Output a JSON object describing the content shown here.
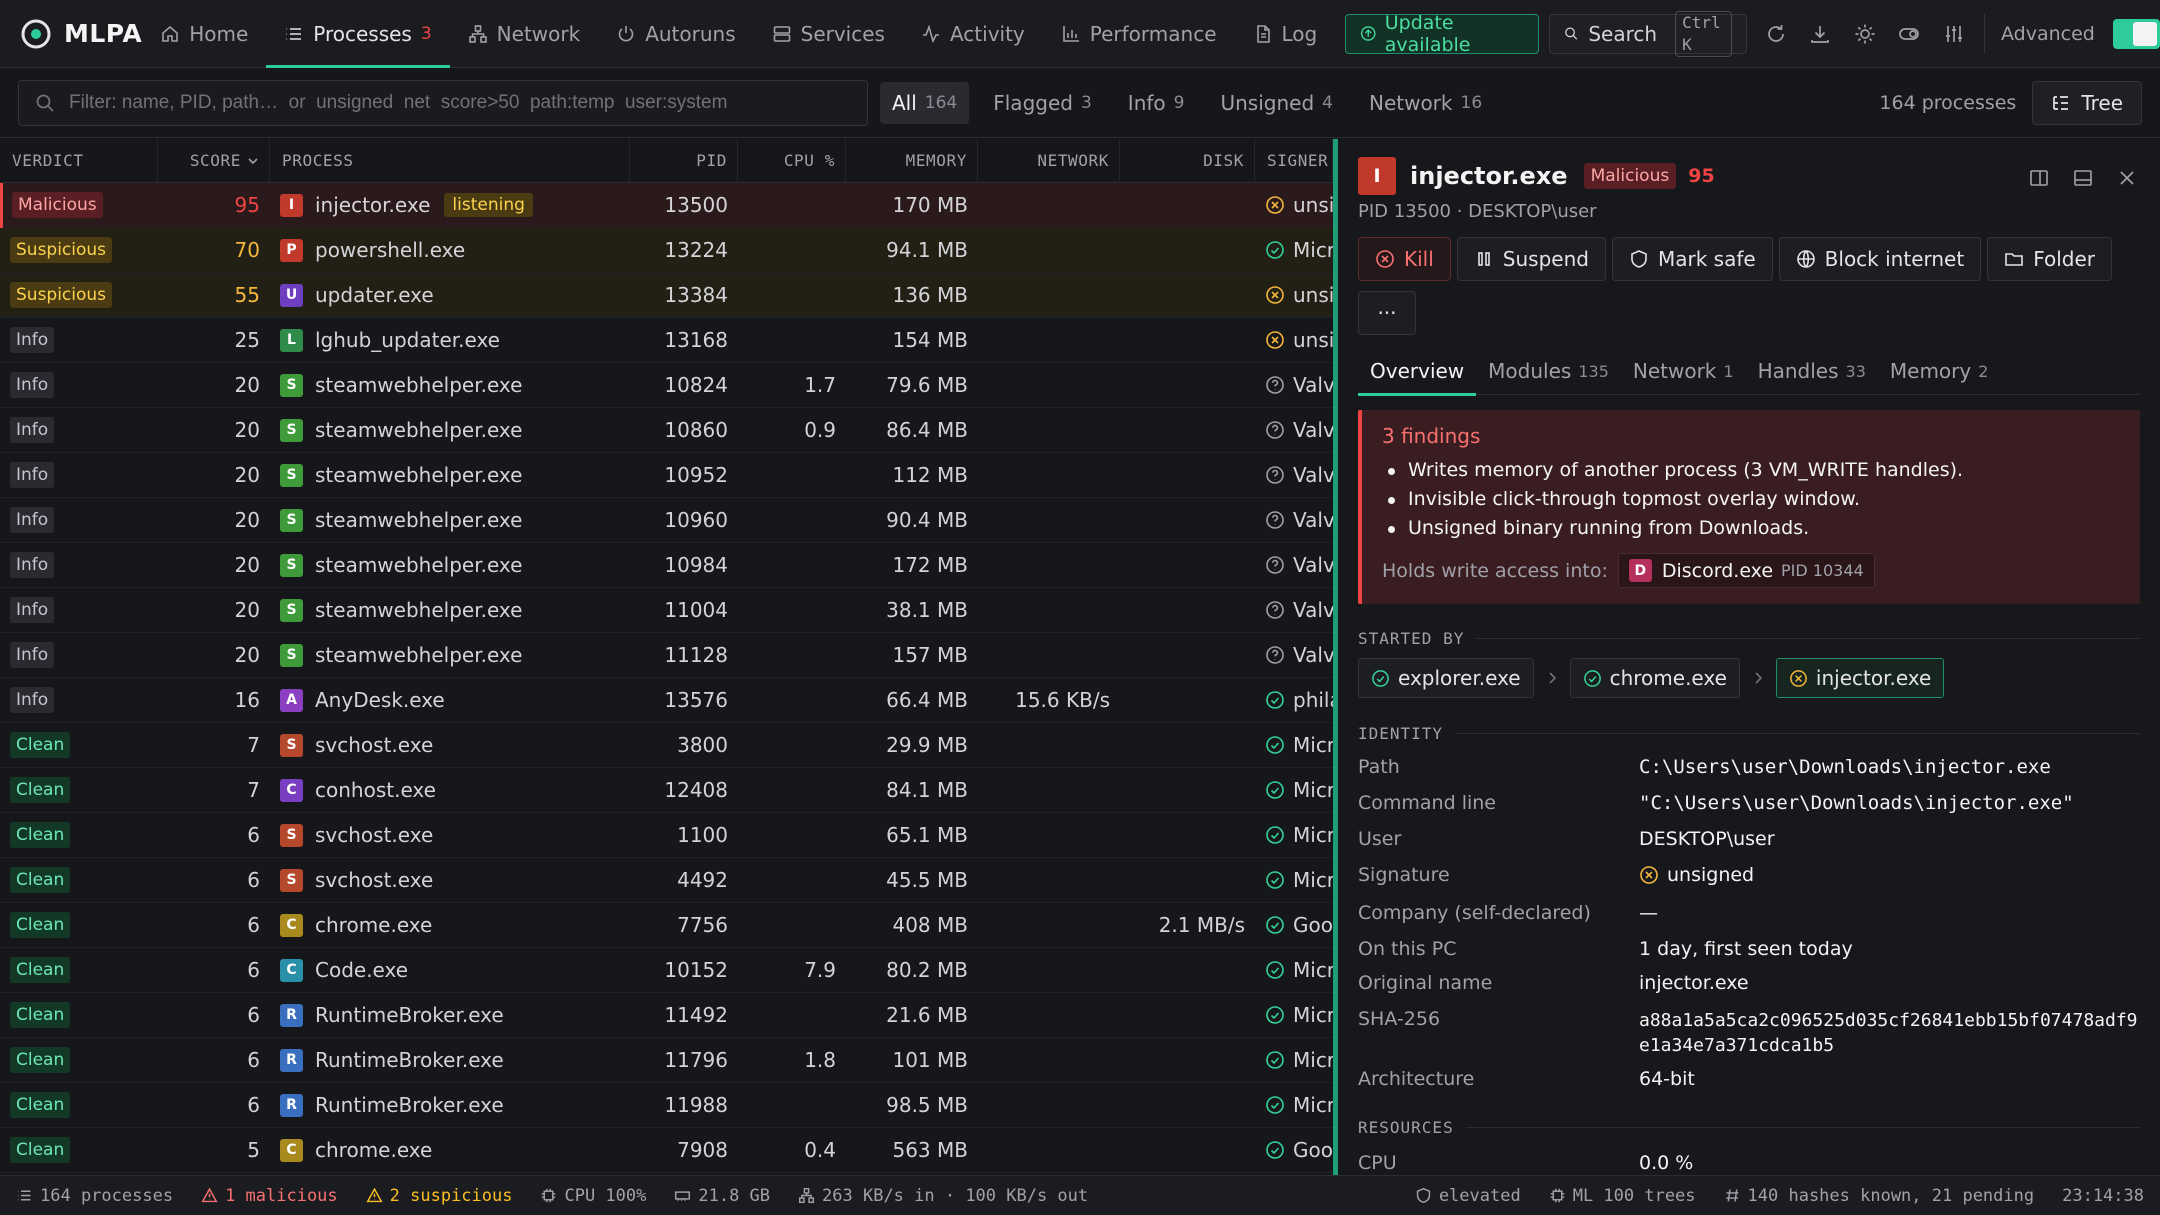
{
  "app": {
    "name": "MLPA"
  },
  "nav": {
    "tabs": [
      {
        "label": "Home",
        "icon": "home-icon"
      },
      {
        "label": "Processes",
        "icon": "list-icon",
        "badge": "3",
        "active": true
      },
      {
        "label": "Network",
        "icon": "network-icon"
      },
      {
        "label": "Autoruns",
        "icon": "power-icon"
      },
      {
        "label": "Services",
        "icon": "server-icon"
      },
      {
        "label": "Activity",
        "icon": "activity-icon"
      },
      {
        "label": "Performance",
        "icon": "bar-chart-icon"
      },
      {
        "label": "Log",
        "icon": "document-icon"
      }
    ],
    "update_label": "Update available",
    "search_label": "Search",
    "search_shortcut": "Ctrl K",
    "advanced_label": "Advanced"
  },
  "filter": {
    "placeholder": "Filter: name, PID, path…  or  unsigned  net  score>50  path:temp  user:system",
    "chips": [
      {
        "label": "All",
        "count": "164",
        "active": true
      },
      {
        "label": "Flagged",
        "count": "3"
      },
      {
        "label": "Info",
        "count": "9"
      },
      {
        "label": "Unsigned",
        "count": "4"
      },
      {
        "label": "Network",
        "count": "16"
      }
    ],
    "process_count": "164 processes",
    "tree_label": "Tree"
  },
  "table": {
    "headers": {
      "verdict": "VERDICT",
      "score": "SCORE",
      "process": "PROCESS",
      "pid": "PID",
      "cpu": "CPU %",
      "memory": "MEMORY",
      "network": "NETWORK",
      "disk": "DISK",
      "signer": "SIGNER"
    },
    "rows": [
      {
        "verdict": "Malicious",
        "score": "95",
        "letter": "I",
        "color": "#c0392b",
        "name": "injector.exe",
        "tag": "listening",
        "pid": "13500",
        "cpu": "",
        "memory": "170 MB",
        "network": "",
        "disk": "",
        "sig": "unsigned",
        "sig_state": "bad"
      },
      {
        "verdict": "Suspicious",
        "score": "70",
        "letter": "P",
        "color": "#c0392b",
        "name": "powershell.exe",
        "tag": "",
        "pid": "13224",
        "cpu": "",
        "memory": "94.1 MB",
        "network": "",
        "disk": "",
        "sig": "Microsoft",
        "sig_state": "ok"
      },
      {
        "verdict": "Suspicious",
        "score": "55",
        "letter": "U",
        "color": "#6d3fc0",
        "name": "updater.exe",
        "tag": "",
        "pid": "13384",
        "cpu": "",
        "memory": "136 MB",
        "network": "",
        "disk": "",
        "sig": "unsigned",
        "sig_state": "bad"
      },
      {
        "verdict": "Info",
        "score": "25",
        "letter": "L",
        "color": "#2e8b4a",
        "name": "lghub_updater.exe",
        "tag": "",
        "pid": "13168",
        "cpu": "",
        "memory": "154 MB",
        "network": "",
        "disk": "",
        "sig": "unsigned",
        "sig_state": "bad"
      },
      {
        "verdict": "Info",
        "score": "20",
        "letter": "S",
        "color": "#3f9a3a",
        "name": "steamwebhelper.exe",
        "tag": "",
        "pid": "10824",
        "cpu": "1.7",
        "memory": "79.6 MB",
        "network": "",
        "disk": "",
        "sig": "Valve",
        "sig_state": "unknown"
      },
      {
        "verdict": "Info",
        "score": "20",
        "letter": "S",
        "color": "#3f9a3a",
        "name": "steamwebhelper.exe",
        "tag": "",
        "pid": "10860",
        "cpu": "0.9",
        "memory": "86.4 MB",
        "network": "",
        "disk": "",
        "sig": "Valve",
        "sig_state": "unknown"
      },
      {
        "verdict": "Info",
        "score": "20",
        "letter": "S",
        "color": "#3f9a3a",
        "name": "steamwebhelper.exe",
        "tag": "",
        "pid": "10952",
        "cpu": "",
        "memory": "112 MB",
        "network": "",
        "disk": "",
        "sig": "Valve",
        "sig_state": "unknown"
      },
      {
        "verdict": "Info",
        "score": "20",
        "letter": "S",
        "color": "#3f9a3a",
        "name": "steamwebhelper.exe",
        "tag": "",
        "pid": "10960",
        "cpu": "",
        "memory": "90.4 MB",
        "network": "",
        "disk": "",
        "sig": "Valve",
        "sig_state": "unknown"
      },
      {
        "verdict": "Info",
        "score": "20",
        "letter": "S",
        "color": "#3f9a3a",
        "name": "steamwebhelper.exe",
        "tag": "",
        "pid": "10984",
        "cpu": "",
        "memory": "172 MB",
        "network": "",
        "disk": "",
        "sig": "Valve",
        "sig_state": "unknown"
      },
      {
        "verdict": "Info",
        "score": "20",
        "letter": "S",
        "color": "#3f9a3a",
        "name": "steamwebhelper.exe",
        "tag": "",
        "pid": "11004",
        "cpu": "",
        "memory": "38.1 MB",
        "network": "",
        "disk": "",
        "sig": "Valve",
        "sig_state": "unknown"
      },
      {
        "verdict": "Info",
        "score": "20",
        "letter": "S",
        "color": "#3f9a3a",
        "name": "steamwebhelper.exe",
        "tag": "",
        "pid": "11128",
        "cpu": "",
        "memory": "157 MB",
        "network": "",
        "disk": "",
        "sig": "Valve",
        "sig_state": "unknown"
      },
      {
        "verdict": "Info",
        "score": "16",
        "letter": "A",
        "color": "#8a3fc0",
        "name": "AnyDesk.exe",
        "tag": "",
        "pid": "13576",
        "cpu": "",
        "memory": "66.4 MB",
        "network": "15.6 KB/s",
        "disk": "",
        "sig": "philandro",
        "sig_state": "ok"
      },
      {
        "verdict": "Clean",
        "score": "7",
        "letter": "S",
        "color": "#b5472c",
        "name": "svchost.exe",
        "tag": "",
        "pid": "3800",
        "cpu": "",
        "memory": "29.9 MB",
        "network": "",
        "disk": "",
        "sig": "Microsoft",
        "sig_state": "ok"
      },
      {
        "verdict": "Clean",
        "score": "7",
        "letter": "C",
        "color": "#7a3fc0",
        "name": "conhost.exe",
        "tag": "",
        "pid": "12408",
        "cpu": "",
        "memory": "84.1 MB",
        "network": "",
        "disk": "",
        "sig": "Microsoft",
        "sig_state": "ok"
      },
      {
        "verdict": "Clean",
        "score": "6",
        "letter": "S",
        "color": "#b5472c",
        "name": "svchost.exe",
        "tag": "",
        "pid": "1100",
        "cpu": "",
        "memory": "65.1 MB",
        "network": "",
        "disk": "",
        "sig": "Microsoft",
        "sig_state": "ok"
      },
      {
        "verdict": "Clean",
        "score": "6",
        "letter": "S",
        "color": "#b5472c",
        "name": "svchost.exe",
        "tag": "",
        "pid": "4492",
        "cpu": "",
        "memory": "45.5 MB",
        "network": "",
        "disk": "",
        "sig": "Microsoft",
        "sig_state": "ok"
      },
      {
        "verdict": "Clean",
        "score": "6",
        "letter": "C",
        "color": "#a88a1e",
        "name": "chrome.exe",
        "tag": "",
        "pid": "7756",
        "cpu": "",
        "memory": "408 MB",
        "network": "",
        "disk": "2.1 MB/s",
        "sig": "Google",
        "sig_state": "ok"
      },
      {
        "verdict": "Clean",
        "score": "6",
        "letter": "C",
        "color": "#2a8fa8",
        "name": "Code.exe",
        "tag": "",
        "pid": "10152",
        "cpu": "7.9",
        "memory": "80.2 MB",
        "network": "",
        "disk": "",
        "sig": "Microsoft",
        "sig_state": "ok"
      },
      {
        "verdict": "Clean",
        "score": "6",
        "letter": "R",
        "color": "#3a6fc0",
        "name": "RuntimeBroker.exe",
        "tag": "",
        "pid": "11492",
        "cpu": "",
        "memory": "21.6 MB",
        "network": "",
        "disk": "",
        "sig": "Microsoft",
        "sig_state": "ok"
      },
      {
        "verdict": "Clean",
        "score": "6",
        "letter": "R",
        "color": "#3a6fc0",
        "name": "RuntimeBroker.exe",
        "tag": "",
        "pid": "11796",
        "cpu": "1.8",
        "memory": "101 MB",
        "network": "",
        "disk": "",
        "sig": "Microsoft",
        "sig_state": "ok"
      },
      {
        "verdict": "Clean",
        "score": "6",
        "letter": "R",
        "color": "#3a6fc0",
        "name": "RuntimeBroker.exe",
        "tag": "",
        "pid": "11988",
        "cpu": "",
        "memory": "98.5 MB",
        "network": "",
        "disk": "",
        "sig": "Microsoft",
        "sig_state": "ok"
      },
      {
        "verdict": "Clean",
        "score": "5",
        "letter": "C",
        "color": "#a88a1e",
        "name": "chrome.exe",
        "tag": "",
        "pid": "7908",
        "cpu": "0.4",
        "memory": "563 MB",
        "network": "",
        "disk": "",
        "sig": "Google",
        "sig_state": "ok"
      }
    ]
  },
  "detail": {
    "letter": "I",
    "name": "injector.exe",
    "verdict": "Malicious",
    "score": "95",
    "subtitle": "PID 13500 · DESKTOP\\user",
    "actions": {
      "kill": "Kill",
      "suspend": "Suspend",
      "mark_safe": "Mark safe",
      "block_internet": "Block internet",
      "folder": "Folder",
      "more": "···"
    },
    "tabs": [
      {
        "label": "Overview",
        "count": "",
        "active": true
      },
      {
        "label": "Modules",
        "count": "135"
      },
      {
        "label": "Network",
        "count": "1"
      },
      {
        "label": "Handles",
        "count": "33"
      },
      {
        "label": "Memory",
        "count": "2"
      }
    ],
    "findings": {
      "title": "3 findings",
      "items": [
        "Writes memory of another process (3 VM_WRITE handles).",
        "Invisible click-through topmost overlay window.",
        "Unsigned binary running from Downloads."
      ],
      "holds_label": "Holds write access into:",
      "holds_letter": "D",
      "holds_name": "Discord.exe",
      "holds_pid": "PID 10344"
    },
    "started_by_label": "STARTED BY",
    "chain": [
      "explorer.exe",
      "chrome.exe",
      "injector.exe"
    ],
    "identity_label": "IDENTITY",
    "identity": {
      "path_k": "Path",
      "path_v": "C:\\Users\\user\\Downloads\\injector.exe",
      "cmd_k": "Command line",
      "cmd_v": "\"C:\\Users\\user\\Downloads\\injector.exe\"",
      "user_k": "User",
      "user_v": "DESKTOP\\user",
      "sig_k": "Signature",
      "sig_v": "unsigned",
      "company_k": "Company (self-declared)",
      "company_v": "—",
      "onpc_k": "On this PC",
      "onpc_v": "1 day, first seen today",
      "orig_k": "Original name",
      "orig_v": "injector.exe",
      "sha_k": "SHA-256",
      "sha_v": "a88a1a5a5ca2c096525d035cf26841ebb15bf07478adf9e1a34e7a371cdca1b5",
      "arch_k": "Architecture",
      "arch_v": "64-bit"
    },
    "resources_label": "RESOURCES",
    "resources": {
      "cpu_k": "CPU",
      "cpu_v": "0.0 %"
    }
  },
  "status": {
    "processes": "164 processes",
    "malicious": "1 malicious",
    "suspicious": "2 suspicious",
    "cpu": "CPU 100%",
    "memory": "21.8 GB",
    "network": "263 KB/s in · 100 KB/s out",
    "elevated": "elevated",
    "ml": "ML 100 trees",
    "hashes": "140 hashes known, 21 pending",
    "time": "23:14:38"
  },
  "colors": {
    "accent": "#2ecc9a",
    "danger": "#ef4444",
    "warning": "#f5b73b"
  }
}
